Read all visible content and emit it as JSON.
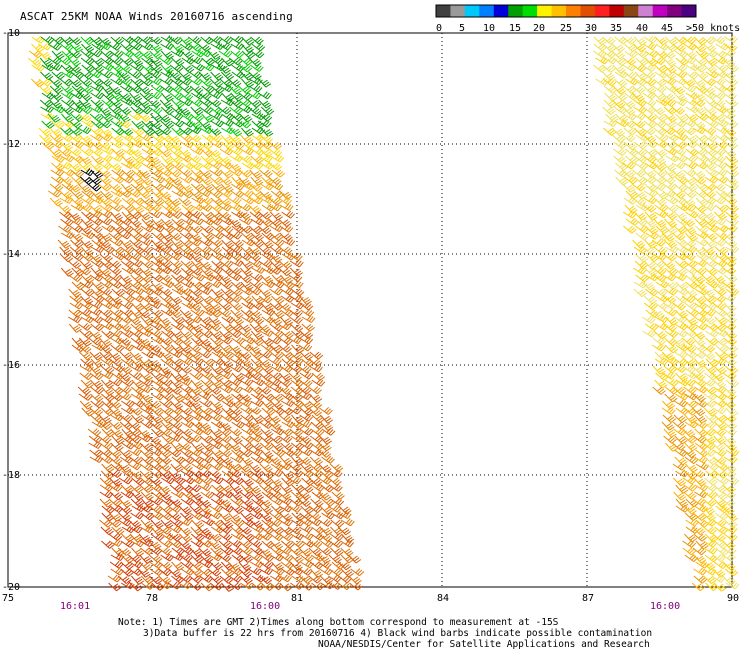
{
  "title": "ASCAT 25KM NOAA Winds 20160716 ascending",
  "colorbar": {
    "labels": [
      "0",
      "5",
      "10",
      "15",
      "20",
      "25",
      "30",
      "35",
      "40",
      "45",
      ">50 knots"
    ],
    "colors": [
      "#404040",
      "#9a9a9a",
      "#00c8ff",
      "#0080ff",
      "#0000d8",
      "#00a000",
      "#00dd00",
      "#fff200",
      "#ffc000",
      "#ff8000",
      "#e05000",
      "#ff2020",
      "#c00000",
      "#8b4513",
      "#d080d0",
      "#c000c0",
      "#800080",
      "#4b0082"
    ]
  },
  "map": {
    "lon_labels": [
      "75",
      "78",
      "81",
      "84",
      "87",
      "90"
    ],
    "lat_labels": [
      "-10",
      "-12",
      "-14",
      "-16",
      "-18",
      "-20"
    ],
    "time_labels": [
      "16:01",
      "16:00",
      "16:00"
    ],
    "time_color": "#800080",
    "grid_style": "dotted"
  },
  "notes": {
    "line1": "Note: 1) Times are GMT 2)Times along bottom correspond to measurement at -15S",
    "line2": "3)Data buffer is 22 hrs from 20160716 4) Black wind barbs indicate possible contamination",
    "line3": "NOAA/NESDIS/Center for Satellite Applications and Research"
  }
}
